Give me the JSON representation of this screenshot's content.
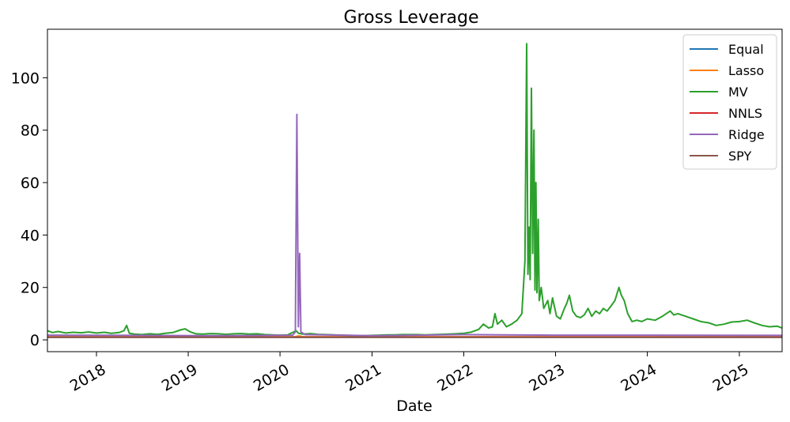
{
  "chart_data": {
    "type": "line",
    "title": "Gross Leverage",
    "xlabel": "Date",
    "ylabel": "",
    "x_range": [
      "2017-06-20",
      "2025-06-20"
    ],
    "ylim": [
      -4.5,
      118.5
    ],
    "y_ticks": [
      0,
      20,
      40,
      60,
      80,
      100
    ],
    "x_ticks": [
      {
        "label": "2018",
        "date": "2018-01-01"
      },
      {
        "label": "2019",
        "date": "2019-01-01"
      },
      {
        "label": "2020",
        "date": "2020-01-01"
      },
      {
        "label": "2021",
        "date": "2021-01-01"
      },
      {
        "label": "2022",
        "date": "2022-01-01"
      },
      {
        "label": "2023",
        "date": "2023-01-01"
      },
      {
        "label": "2024",
        "date": "2024-01-01"
      },
      {
        "label": "2025",
        "date": "2025-01-01"
      }
    ],
    "grid": false,
    "legend_position": "top-right",
    "series": [
      {
        "name": "Equal",
        "color": "#1f77b4",
        "points": [
          [
            "2017-06-20",
            1.0
          ],
          [
            "2025-06-20",
            1.0
          ]
        ]
      },
      {
        "name": "Lasso",
        "color": "#ff7f0e",
        "points": [
          [
            "2017-06-20",
            1.2
          ],
          [
            "2020-03-01",
            1.2
          ],
          [
            "2020-03-15",
            1.5
          ],
          [
            "2020-04-01",
            1.2
          ],
          [
            "2025-06-20",
            1.2
          ]
        ]
      },
      {
        "name": "MV",
        "color": "#2ca02c",
        "points": [
          [
            "2017-06-20",
            3.5
          ],
          [
            "2017-07-10",
            2.8
          ],
          [
            "2017-08-01",
            3.2
          ],
          [
            "2017-09-01",
            2.6
          ],
          [
            "2017-10-01",
            2.9
          ],
          [
            "2017-11-01",
            2.7
          ],
          [
            "2017-12-01",
            3.0
          ],
          [
            "2018-01-01",
            2.6
          ],
          [
            "2018-02-01",
            2.9
          ],
          [
            "2018-03-01",
            2.5
          ],
          [
            "2018-04-01",
            2.8
          ],
          [
            "2018-04-20",
            3.5
          ],
          [
            "2018-05-01",
            5.5
          ],
          [
            "2018-05-12",
            2.5
          ],
          [
            "2018-06-01",
            2.2
          ],
          [
            "2018-07-01",
            2.0
          ],
          [
            "2018-08-01",
            2.3
          ],
          [
            "2018-09-01",
            2.1
          ],
          [
            "2018-10-01",
            2.5
          ],
          [
            "2018-11-01",
            2.8
          ],
          [
            "2018-12-01",
            3.8
          ],
          [
            "2018-12-20",
            4.2
          ],
          [
            "2019-01-10",
            3.0
          ],
          [
            "2019-02-01",
            2.3
          ],
          [
            "2019-03-01",
            2.2
          ],
          [
            "2019-04-01",
            2.4
          ],
          [
            "2019-05-01",
            2.3
          ],
          [
            "2019-06-01",
            2.1
          ],
          [
            "2019-07-01",
            2.3
          ],
          [
            "2019-08-01",
            2.4
          ],
          [
            "2019-09-01",
            2.2
          ],
          [
            "2019-10-01",
            2.3
          ],
          [
            "2019-11-01",
            2.0
          ],
          [
            "2019-12-01",
            1.9
          ],
          [
            "2020-01-01",
            1.8
          ],
          [
            "2020-02-01",
            1.9
          ],
          [
            "2020-03-05",
            3.5
          ],
          [
            "2020-03-15",
            2.5
          ],
          [
            "2020-04-01",
            2.2
          ],
          [
            "2020-05-01",
            2.4
          ],
          [
            "2020-06-01",
            2.1
          ],
          [
            "2020-07-01",
            2.0
          ],
          [
            "2020-08-01",
            1.9
          ],
          [
            "2020-09-01",
            1.8
          ],
          [
            "2020-10-01",
            1.7
          ],
          [
            "2020-11-01",
            1.6
          ],
          [
            "2020-12-01",
            1.6
          ],
          [
            "2021-01-01",
            1.7
          ],
          [
            "2021-02-01",
            1.8
          ],
          [
            "2021-03-01",
            1.9
          ],
          [
            "2021-04-01",
            1.9
          ],
          [
            "2021-05-01",
            2.0
          ],
          [
            "2021-06-01",
            2.0
          ],
          [
            "2021-07-01",
            2.0
          ],
          [
            "2021-08-01",
            1.9
          ],
          [
            "2021-09-01",
            2.0
          ],
          [
            "2021-10-01",
            2.1
          ],
          [
            "2021-11-01",
            2.2
          ],
          [
            "2021-12-01",
            2.3
          ],
          [
            "2022-01-01",
            2.5
          ],
          [
            "2022-02-01",
            3.0
          ],
          [
            "2022-03-01",
            4.0
          ],
          [
            "2022-03-20",
            6.0
          ],
          [
            "2022-04-10",
            4.5
          ],
          [
            "2022-04-25",
            5.0
          ],
          [
            "2022-05-05",
            10.0
          ],
          [
            "2022-05-15",
            6.0
          ],
          [
            "2022-06-01",
            7.5
          ],
          [
            "2022-06-20",
            5.0
          ],
          [
            "2022-07-10",
            6.0
          ],
          [
            "2022-08-01",
            7.5
          ],
          [
            "2022-08-20",
            10.0
          ],
          [
            "2022-09-01",
            30.0
          ],
          [
            "2022-09-08",
            113.0
          ],
          [
            "2022-09-13",
            25.0
          ],
          [
            "2022-09-18",
            43.0
          ],
          [
            "2022-09-22",
            23.0
          ],
          [
            "2022-09-27",
            96.0
          ],
          [
            "2022-10-02",
            33.0
          ],
          [
            "2022-10-07",
            80.0
          ],
          [
            "2022-10-11",
            19.0
          ],
          [
            "2022-10-15",
            60.0
          ],
          [
            "2022-10-19",
            18.0
          ],
          [
            "2022-10-24",
            46.0
          ],
          [
            "2022-10-28",
            15.0
          ],
          [
            "2022-11-05",
            20.0
          ],
          [
            "2022-11-15",
            12.0
          ],
          [
            "2022-12-01",
            15.0
          ],
          [
            "2022-12-10",
            10.0
          ],
          [
            "2022-12-20",
            16.0
          ],
          [
            "2023-01-05",
            9.0
          ],
          [
            "2023-01-20",
            8.0
          ],
          [
            "2023-02-05",
            12.0
          ],
          [
            "2023-02-15",
            14.0
          ],
          [
            "2023-02-25",
            17.0
          ],
          [
            "2023-03-10",
            11.0
          ],
          [
            "2023-03-25",
            9.0
          ],
          [
            "2023-04-10",
            8.5
          ],
          [
            "2023-04-25",
            9.5
          ],
          [
            "2023-05-10",
            12.0
          ],
          [
            "2023-05-25",
            9.0
          ],
          [
            "2023-06-10",
            11.0
          ],
          [
            "2023-06-25",
            10.0
          ],
          [
            "2023-07-10",
            12.0
          ],
          [
            "2023-07-25",
            11.0
          ],
          [
            "2023-08-10",
            13.0
          ],
          [
            "2023-08-25",
            15.0
          ],
          [
            "2023-09-10",
            20.0
          ],
          [
            "2023-09-20",
            17.0
          ],
          [
            "2023-10-01",
            15.0
          ],
          [
            "2023-10-15",
            10.0
          ],
          [
            "2023-11-01",
            7.0
          ],
          [
            "2023-11-20",
            7.5
          ],
          [
            "2023-12-10",
            7.0
          ],
          [
            "2024-01-01",
            8.0
          ],
          [
            "2024-02-01",
            7.5
          ],
          [
            "2024-03-01",
            9.0
          ],
          [
            "2024-04-01",
            11.0
          ],
          [
            "2024-04-15",
            9.5
          ],
          [
            "2024-05-01",
            10.0
          ],
          [
            "2024-06-01",
            9.0
          ],
          [
            "2024-07-01",
            8.0
          ],
          [
            "2024-08-01",
            7.0
          ],
          [
            "2024-09-01",
            6.5
          ],
          [
            "2024-10-01",
            5.5
          ],
          [
            "2024-11-01",
            6.0
          ],
          [
            "2024-12-01",
            6.8
          ],
          [
            "2025-01-01",
            7.0
          ],
          [
            "2025-02-01",
            7.5
          ],
          [
            "2025-03-01",
            6.5
          ],
          [
            "2025-04-01",
            5.5
          ],
          [
            "2025-05-01",
            5.0
          ],
          [
            "2025-06-01",
            5.2
          ],
          [
            "2025-06-20",
            4.5
          ]
        ]
      },
      {
        "name": "NNLS",
        "color": "#d62728",
        "points": [
          [
            "2017-06-20",
            1.05
          ],
          [
            "2025-06-20",
            1.05
          ]
        ]
      },
      {
        "name": "Ridge",
        "color": "#9467bd",
        "points": [
          [
            "2017-06-20",
            1.8
          ],
          [
            "2018-06-01",
            1.7
          ],
          [
            "2019-06-01",
            1.6
          ],
          [
            "2020-02-20",
            1.8
          ],
          [
            "2020-03-02",
            3.0
          ],
          [
            "2020-03-08",
            86.0
          ],
          [
            "2020-03-14",
            5.0
          ],
          [
            "2020-03-19",
            33.0
          ],
          [
            "2020-03-24",
            3.0
          ],
          [
            "2020-04-10",
            2.0
          ],
          [
            "2021-01-01",
            1.6
          ],
          [
            "2022-01-01",
            2.0
          ],
          [
            "2023-01-01",
            1.8
          ],
          [
            "2024-01-01",
            1.8
          ],
          [
            "2025-06-20",
            1.7
          ]
        ]
      },
      {
        "name": "SPY",
        "color": "#8c564b",
        "points": [
          [
            "2017-06-20",
            1.0
          ],
          [
            "2025-06-20",
            1.0
          ]
        ]
      }
    ]
  }
}
